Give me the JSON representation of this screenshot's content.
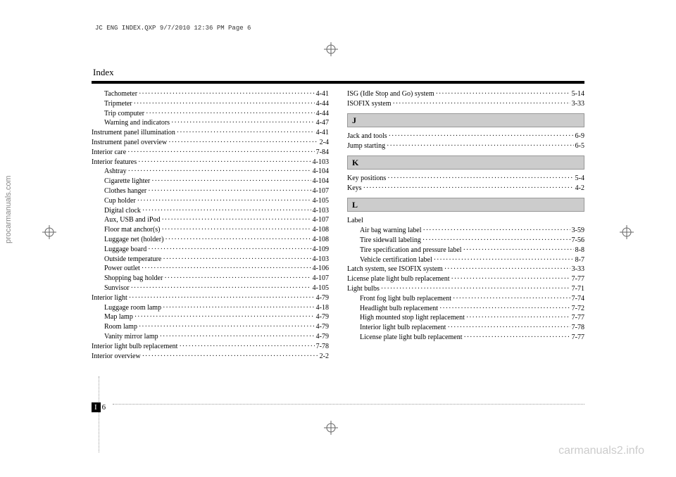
{
  "watermarks": {
    "left": "procarmanuals.com",
    "bottom": "carmanuals2.info"
  },
  "printHeader": "JC ENG INDEX.QXP  9/7/2010  12:36 PM  Page 6",
  "headerTitle": "Index",
  "pageNumber": {
    "section": "I",
    "num": "6"
  },
  "sections": {
    "J": "J",
    "K": "K",
    "L": "L"
  },
  "leftColumn": [
    {
      "label": "Tachometer",
      "page": "4-41",
      "indent": true
    },
    {
      "label": "Tripmeter",
      "page": "4-44",
      "indent": true
    },
    {
      "label": "Trip computer",
      "page": "4-44",
      "indent": true
    },
    {
      "label": "Warning and indicators",
      "page": "4-47",
      "indent": true
    },
    {
      "label": "Instrument panel illumination",
      "page": "4-41",
      "indent": false
    },
    {
      "label": "Instrument panel overview",
      "page": "2-4",
      "indent": false
    },
    {
      "label": "Interior care",
      "page": "7-84",
      "indent": false
    },
    {
      "label": "Interior features",
      "page": "4-103",
      "indent": false
    },
    {
      "label": "Ashtray",
      "page": "4-104",
      "indent": true
    },
    {
      "label": "Cigarette lighter",
      "page": "4-104",
      "indent": true
    },
    {
      "label": "Clothes hanger",
      "page": "4-107",
      "indent": true
    },
    {
      "label": "Cup holder",
      "page": "4-105",
      "indent": true
    },
    {
      "label": "Digital clock",
      "page": "4-103",
      "indent": true
    },
    {
      "label": "Aux, USB and iPod",
      "page": "4-107",
      "indent": true
    },
    {
      "label": "Floor mat anchor(s)",
      "page": "4-108",
      "indent": true
    },
    {
      "label": "Luggage net (holder)",
      "page": "4-108",
      "indent": true
    },
    {
      "label": "Luggage board",
      "page": "4-109",
      "indent": true
    },
    {
      "label": "Outside temperature",
      "page": "4-103",
      "indent": true
    },
    {
      "label": "Power outlet",
      "page": "4-106",
      "indent": true
    },
    {
      "label": "Shopping bag holder",
      "page": "4-107",
      "indent": true
    },
    {
      "label": "Sunvisor",
      "page": "4-105",
      "indent": true
    },
    {
      "label": "Interior light",
      "page": "4-79",
      "indent": false
    },
    {
      "label": "Luggage room lamp",
      "page": "4-18",
      "indent": true
    },
    {
      "label": "Map lamp",
      "page": "4-79",
      "indent": true
    },
    {
      "label": "Room lamp",
      "page": "4-79",
      "indent": true
    },
    {
      "label": "Vanity mirror lamp",
      "page": "4-79",
      "indent": true
    },
    {
      "label": "Interior light bulb replacement",
      "page": "7-78",
      "indent": false
    },
    {
      "label": "Interior overview",
      "page": "2-2",
      "indent": false
    }
  ],
  "rightGroups": {
    "top": [
      {
        "label": "ISG (Idle Stop and Go) system",
        "page": "5-14",
        "indent": false
      },
      {
        "label": "ISOFIX system",
        "page": "3-33",
        "indent": false
      }
    ],
    "J": [
      {
        "label": "Jack and tools",
        "page": "6-9",
        "indent": false
      },
      {
        "label": "Jump starting",
        "page": "6-5",
        "indent": false
      }
    ],
    "K": [
      {
        "label": "Key positions",
        "page": "5-4",
        "indent": false
      },
      {
        "label": "Keys",
        "page": "4-2",
        "indent": false
      }
    ],
    "LHeader": "Label",
    "L": [
      {
        "label": "Air bag warning label",
        "page": "3-59",
        "indent": true
      },
      {
        "label": "Tire sidewall labeling",
        "page": "7-56",
        "indent": true
      },
      {
        "label": "Tire specification and pressure label",
        "page": "8-8",
        "indent": true
      },
      {
        "label": "Vehicle certification label",
        "page": "8-7",
        "indent": true
      },
      {
        "label": "Latch system, see ISOFIX system",
        "page": "3-33",
        "indent": false
      },
      {
        "label": "License plate light bulb replacement",
        "page": "7-77",
        "indent": false
      },
      {
        "label": "Light bulbs",
        "page": "7-71",
        "indent": false
      },
      {
        "label": "Front fog light bulb replacement",
        "page": "7-74",
        "indent": true
      },
      {
        "label": "Headlight bulb replacement",
        "page": "7-72",
        "indent": true
      },
      {
        "label": "High mounted stop light replacement",
        "page": "7-77",
        "indent": true
      },
      {
        "label": "Interior light bulb replacement",
        "page": "7-78",
        "indent": true
      },
      {
        "label": "License plate light bulb replacement",
        "page": "7-77",
        "indent": true
      }
    ]
  }
}
